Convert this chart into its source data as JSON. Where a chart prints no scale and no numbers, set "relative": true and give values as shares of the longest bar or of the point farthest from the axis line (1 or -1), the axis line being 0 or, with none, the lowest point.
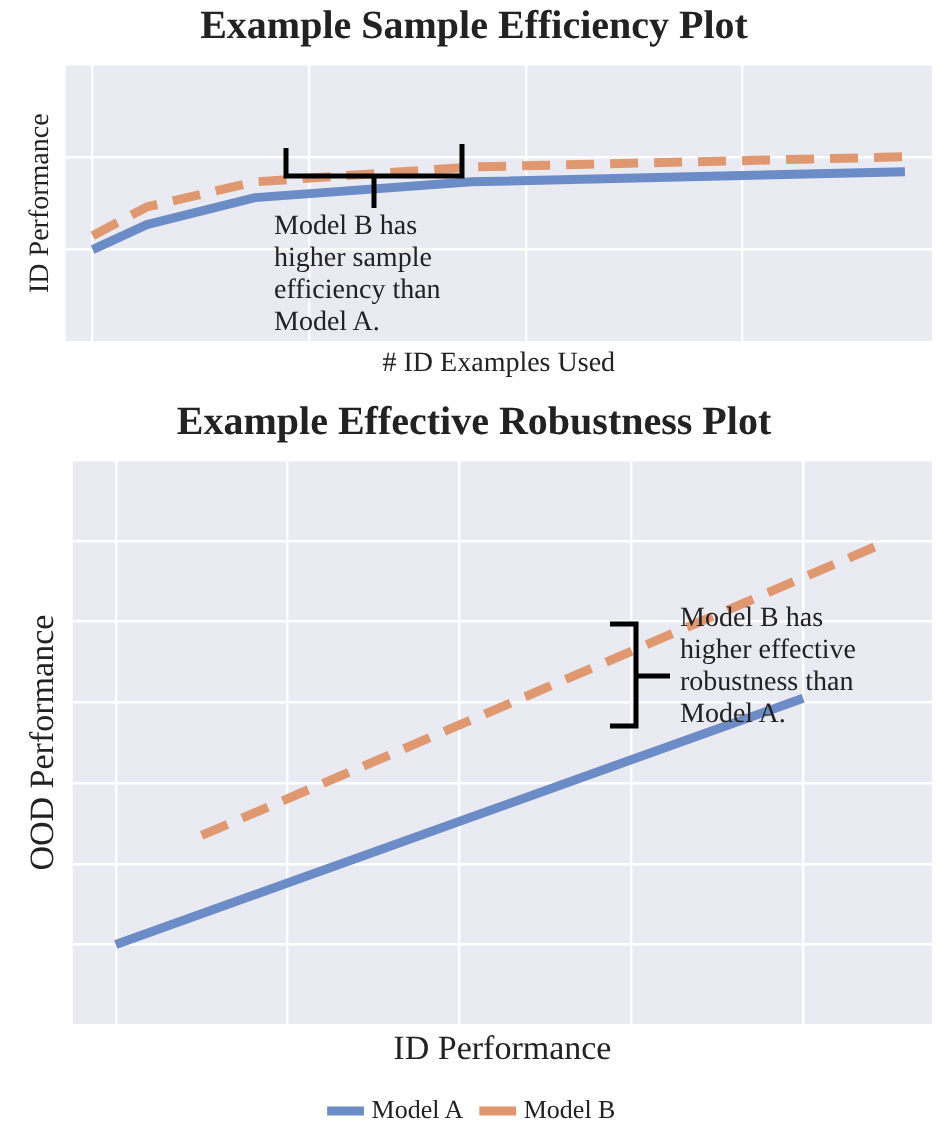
{
  "chart_data": [
    {
      "type": "line",
      "title": "Example Sample Efficiency Plot",
      "xlabel": "# ID Examples Used",
      "ylabel": "ID Performance",
      "relative": true,
      "tick_labels": false,
      "grid": true,
      "categories": [
        null,
        null,
        null,
        null,
        null,
        null,
        null,
        null,
        null,
        null,
        null,
        null,
        null,
        null,
        null,
        null
      ],
      "series": [
        {
          "color": "#6b8cc6",
          "line_style": "solid",
          "values": [
            0,
            0.27,
            null,
            0.56,
            null,
            null,
            null,
            0.73,
            null,
            null,
            null,
            null,
            null,
            null,
            null,
            0.84
          ]
        },
        {
          "color": "#e09870",
          "line_style": "dashed",
          "values": [
            0.15,
            0.46,
            null,
            0.73,
            null,
            null,
            null,
            0.89,
            null,
            null,
            null,
            null,
            null,
            null,
            null,
            1
          ]
        }
      ],
      "annotations": [
        "Model B has\nhigher sample\nefficiency than\nModel A."
      ]
    },
    {
      "type": "line",
      "title": "Example Effective Robustness Plot",
      "xlabel": "ID Performance",
      "ylabel": "OOD Performance",
      "relative": true,
      "tick_labels": false,
      "grid": true,
      "legend": "bottom",
      "categories": [
        null,
        null,
        null,
        null,
        null,
        null,
        null,
        null,
        null,
        null
      ],
      "series": [
        {
          "name": "Model A",
          "color": "#6b8cc6",
          "line_style": "solid",
          "values": [
            0,
            null,
            null,
            null,
            null,
            null,
            null,
            null,
            0.61,
            null
          ]
        },
        {
          "name": "Model B",
          "color": "#e09870",
          "line_style": "dashed",
          "values": [
            null,
            0.27,
            null,
            null,
            null,
            null,
            null,
            null,
            null,
            1
          ]
        }
      ],
      "annotations": [
        "Model B has\nhigher effective\nrobustness than\nModel A."
      ]
    }
  ]
}
